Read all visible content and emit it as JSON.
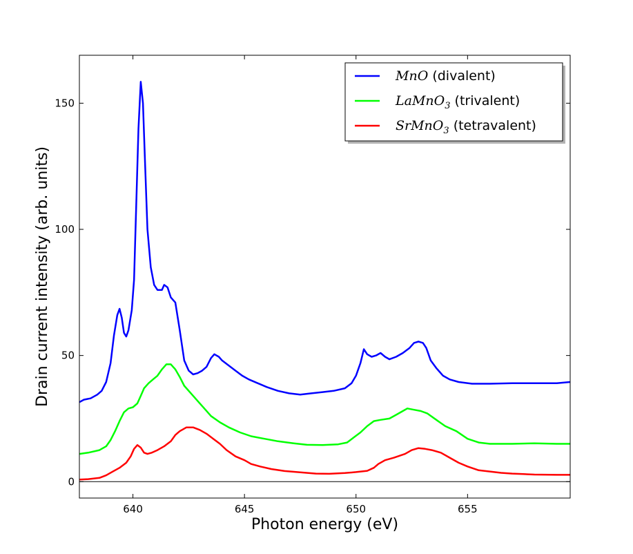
{
  "chart_data": {
    "type": "line",
    "title": "",
    "xlabel": "Photon energy (eV)",
    "ylabel": "Drain current intensity (arb. units)",
    "xlim": [
      637.6,
      659.6
    ],
    "ylim": [
      -6.5,
      169
    ],
    "xticks": [
      640,
      645,
      650,
      655
    ],
    "xtick_labels": [
      "640",
      "645",
      "650",
      "655"
    ],
    "yticks": [
      0,
      50,
      100,
      150
    ],
    "ytick_labels": [
      "0",
      "50",
      "100",
      "150"
    ],
    "grid": false,
    "legend_position": "top-right",
    "zero_line": true,
    "series": [
      {
        "name": "MnO (divalent)",
        "legend_math": "MnO",
        "legend_sub": "",
        "legend_suffix": " (divalent)",
        "color": "#0000ff",
        "points": [
          [
            637.6,
            31.5
          ],
          [
            637.8,
            32.5
          ],
          [
            638.1,
            33
          ],
          [
            638.4,
            34.5
          ],
          [
            638.6,
            36
          ],
          [
            638.8,
            39.5
          ],
          [
            639.0,
            47
          ],
          [
            639.15,
            58
          ],
          [
            639.3,
            66
          ],
          [
            639.4,
            68.5
          ],
          [
            639.5,
            65
          ],
          [
            639.6,
            59
          ],
          [
            639.7,
            57.5
          ],
          [
            639.8,
            60
          ],
          [
            639.95,
            68
          ],
          [
            640.05,
            80
          ],
          [
            640.15,
            110
          ],
          [
            640.25,
            140
          ],
          [
            640.35,
            158.5
          ],
          [
            640.45,
            150
          ],
          [
            640.55,
            125
          ],
          [
            640.65,
            100
          ],
          [
            640.8,
            85
          ],
          [
            640.95,
            78
          ],
          [
            641.1,
            76
          ],
          [
            641.3,
            76
          ],
          [
            641.4,
            78
          ],
          [
            641.55,
            77
          ],
          [
            641.7,
            73
          ],
          [
            641.9,
            71
          ],
          [
            642.1,
            60
          ],
          [
            642.3,
            48
          ],
          [
            642.5,
            44
          ],
          [
            642.7,
            42.5
          ],
          [
            642.9,
            43
          ],
          [
            643.1,
            44
          ],
          [
            643.3,
            45.5
          ],
          [
            643.5,
            49
          ],
          [
            643.65,
            50.5
          ],
          [
            643.85,
            49.5
          ],
          [
            644.0,
            48
          ],
          [
            644.3,
            46
          ],
          [
            644.6,
            44
          ],
          [
            644.9,
            42
          ],
          [
            645.2,
            40.5
          ],
          [
            645.6,
            39
          ],
          [
            646.0,
            37.5
          ],
          [
            646.5,
            36
          ],
          [
            647.0,
            35
          ],
          [
            647.5,
            34.5
          ],
          [
            648.0,
            35
          ],
          [
            648.5,
            35.5
          ],
          [
            649.0,
            36
          ],
          [
            649.5,
            37
          ],
          [
            649.8,
            39
          ],
          [
            650.0,
            42
          ],
          [
            650.2,
            47
          ],
          [
            650.35,
            52.5
          ],
          [
            650.5,
            50.5
          ],
          [
            650.7,
            49.5
          ],
          [
            650.9,
            50
          ],
          [
            651.1,
            51
          ],
          [
            651.3,
            49.5
          ],
          [
            651.5,
            48.5
          ],
          [
            651.8,
            49.5
          ],
          [
            652.1,
            51
          ],
          [
            652.4,
            53
          ],
          [
            652.6,
            55
          ],
          [
            652.8,
            55.5
          ],
          [
            653.0,
            55
          ],
          [
            653.15,
            53
          ],
          [
            653.35,
            48
          ],
          [
            653.6,
            45
          ],
          [
            653.9,
            42
          ],
          [
            654.2,
            40.5
          ],
          [
            654.6,
            39.5
          ],
          [
            655.2,
            38.8
          ],
          [
            656.0,
            38.8
          ],
          [
            657.0,
            39
          ],
          [
            658.0,
            39
          ],
          [
            659.0,
            39
          ],
          [
            659.6,
            39.5
          ]
        ]
      },
      {
        "name": "LaMnO3 (trivalent)",
        "legend_math": "LaMnO",
        "legend_sub": "3",
        "legend_suffix": " (trivalent)",
        "color": "#00ff00",
        "points": [
          [
            637.6,
            11
          ],
          [
            638.0,
            11.5
          ],
          [
            638.5,
            12.5
          ],
          [
            638.8,
            14
          ],
          [
            639.0,
            16.5
          ],
          [
            639.2,
            20
          ],
          [
            639.4,
            24
          ],
          [
            639.6,
            27.5
          ],
          [
            639.8,
            29
          ],
          [
            640.0,
            29.5
          ],
          [
            640.2,
            31
          ],
          [
            640.35,
            34
          ],
          [
            640.5,
            37
          ],
          [
            640.7,
            39
          ],
          [
            640.9,
            40.5
          ],
          [
            641.1,
            42
          ],
          [
            641.3,
            44.5
          ],
          [
            641.5,
            46.5
          ],
          [
            641.7,
            46.5
          ],
          [
            641.9,
            44.5
          ],
          [
            642.1,
            41.5
          ],
          [
            642.3,
            38
          ],
          [
            642.6,
            35
          ],
          [
            642.9,
            32
          ],
          [
            643.2,
            29
          ],
          [
            643.5,
            26
          ],
          [
            643.9,
            23.5
          ],
          [
            644.3,
            21.5
          ],
          [
            644.8,
            19.5
          ],
          [
            645.3,
            18
          ],
          [
            645.9,
            17
          ],
          [
            646.5,
            16
          ],
          [
            647.2,
            15.2
          ],
          [
            647.8,
            14.6
          ],
          [
            648.5,
            14.5
          ],
          [
            649.2,
            14.8
          ],
          [
            649.6,
            15.5
          ],
          [
            649.9,
            17.5
          ],
          [
            650.2,
            19.5
          ],
          [
            650.5,
            22
          ],
          [
            650.8,
            24
          ],
          [
            651.1,
            24.5
          ],
          [
            651.5,
            25
          ],
          [
            651.8,
            26.5
          ],
          [
            652.1,
            28
          ],
          [
            652.3,
            29
          ],
          [
            652.6,
            28.5
          ],
          [
            652.9,
            28
          ],
          [
            653.2,
            27
          ],
          [
            653.6,
            24.5
          ],
          [
            654.0,
            22
          ],
          [
            654.5,
            20
          ],
          [
            655.0,
            17
          ],
          [
            655.5,
            15.5
          ],
          [
            656.0,
            15
          ],
          [
            657.0,
            15
          ],
          [
            658.0,
            15.2
          ],
          [
            659.0,
            15
          ],
          [
            659.6,
            15
          ]
        ]
      },
      {
        "name": "SrMnO3 (tetravalent)",
        "legend_math": "SrMnO",
        "legend_sub": "3",
        "legend_suffix": " (tetravalent)",
        "color": "#ff0000",
        "points": [
          [
            637.6,
            0.8
          ],
          [
            638.0,
            1
          ],
          [
            638.5,
            1.5
          ],
          [
            638.8,
            2.5
          ],
          [
            639.1,
            4
          ],
          [
            639.4,
            5.5
          ],
          [
            639.7,
            7.5
          ],
          [
            639.9,
            10
          ],
          [
            640.05,
            13
          ],
          [
            640.2,
            14.5
          ],
          [
            640.35,
            13.5
          ],
          [
            640.5,
            11.5
          ],
          [
            640.65,
            11
          ],
          [
            640.85,
            11.5
          ],
          [
            641.1,
            12.5
          ],
          [
            641.4,
            14
          ],
          [
            641.7,
            16
          ],
          [
            641.9,
            18.5
          ],
          [
            642.1,
            20
          ],
          [
            642.4,
            21.5
          ],
          [
            642.7,
            21.5
          ],
          [
            643.0,
            20.5
          ],
          [
            643.3,
            19
          ],
          [
            643.6,
            17
          ],
          [
            643.9,
            15
          ],
          [
            644.2,
            12.5
          ],
          [
            644.6,
            10
          ],
          [
            645.0,
            8.5
          ],
          [
            645.3,
            7
          ],
          [
            645.7,
            6
          ],
          [
            646.2,
            5
          ],
          [
            646.8,
            4.2
          ],
          [
            647.5,
            3.7
          ],
          [
            648.2,
            3.2
          ],
          [
            648.8,
            3.1
          ],
          [
            649.5,
            3.4
          ],
          [
            650.0,
            3.8
          ],
          [
            650.5,
            4.3
          ],
          [
            650.8,
            5.5
          ],
          [
            651.0,
            7
          ],
          [
            651.3,
            8.5
          ],
          [
            651.7,
            9.5
          ],
          [
            652.2,
            11
          ],
          [
            652.5,
            12.5
          ],
          [
            652.8,
            13.3
          ],
          [
            653.1,
            13
          ],
          [
            653.4,
            12.5
          ],
          [
            653.8,
            11.5
          ],
          [
            654.2,
            9.5
          ],
          [
            654.6,
            7.5
          ],
          [
            655.0,
            6
          ],
          [
            655.5,
            4.5
          ],
          [
            656.0,
            4
          ],
          [
            656.5,
            3.5
          ],
          [
            657.0,
            3.2
          ],
          [
            657.5,
            3.0
          ],
          [
            658.0,
            2.8
          ],
          [
            659.0,
            2.7
          ],
          [
            659.6,
            2.7
          ]
        ]
      }
    ]
  }
}
